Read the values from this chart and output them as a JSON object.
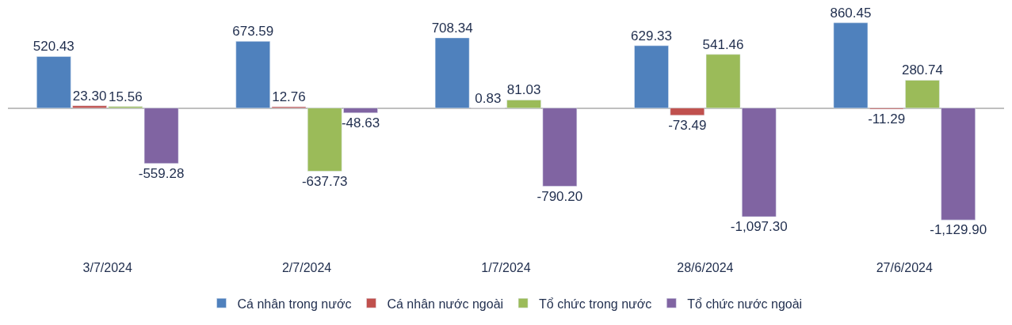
{
  "chart_data": {
    "type": "bar",
    "categories": [
      "3/7/2024",
      "2/7/2024",
      "1/7/2024",
      "28/6/2024",
      "27/6/2024"
    ],
    "series": [
      {
        "name": "Cá nhân trong nước",
        "color": "#4f81bd",
        "values": [
          520.43,
          673.59,
          708.34,
          629.33,
          860.45
        ],
        "value_labels": [
          "520.43",
          "673.59",
          "708.34",
          "629.33",
          "860.45"
        ]
      },
      {
        "name": "Cá nhân nước ngoài",
        "color": "#c0504d",
        "values": [
          23.3,
          12.76,
          0.83,
          -73.49,
          -11.29
        ],
        "value_labels": [
          "23.30",
          "12.76",
          "0.83",
          "-73.49",
          "-11.29"
        ]
      },
      {
        "name": "Tổ chức trong nước",
        "color": "#9bbb59",
        "values": [
          15.56,
          -637.73,
          81.03,
          541.46,
          280.74
        ],
        "value_labels": [
          "15.56",
          "-637.73",
          "81.03",
          "541.46",
          "280.74"
        ]
      },
      {
        "name": "Tổ chức nước ngoài",
        "color": "#8064a2",
        "values": [
          -559.28,
          -48.63,
          -790.2,
          -1097.3,
          -1129.9
        ],
        "value_labels": [
          "-559.28",
          "-48.63",
          "-790.20",
          "-1,097.30",
          "-1,129.90"
        ]
      }
    ],
    "legend": "bottom",
    "tick_labels": "x"
  }
}
